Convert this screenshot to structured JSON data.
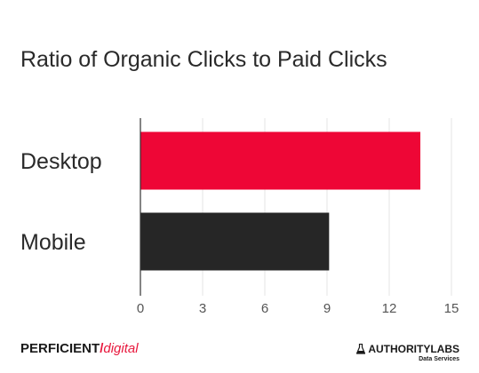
{
  "chart_data": {
    "type": "bar",
    "orientation": "horizontal",
    "title": "Ratio of Organic Clicks to Paid Clicks",
    "categories": [
      "Desktop",
      "Mobile"
    ],
    "values": [
      13.5,
      9.1
    ],
    "colors": [
      "#ee0636",
      "#262626"
    ],
    "xlim": [
      0,
      15
    ],
    "xticks": [
      "0",
      "3",
      "6",
      "9",
      "12",
      "15"
    ],
    "grid": "vertical"
  },
  "footer": {
    "left_logo_part1": "PERFICIENT",
    "left_logo_slash": "/",
    "left_logo_part2": "digital",
    "right_logo_main": "AUTHORITYLABS",
    "right_logo_sub": "Data Services"
  }
}
